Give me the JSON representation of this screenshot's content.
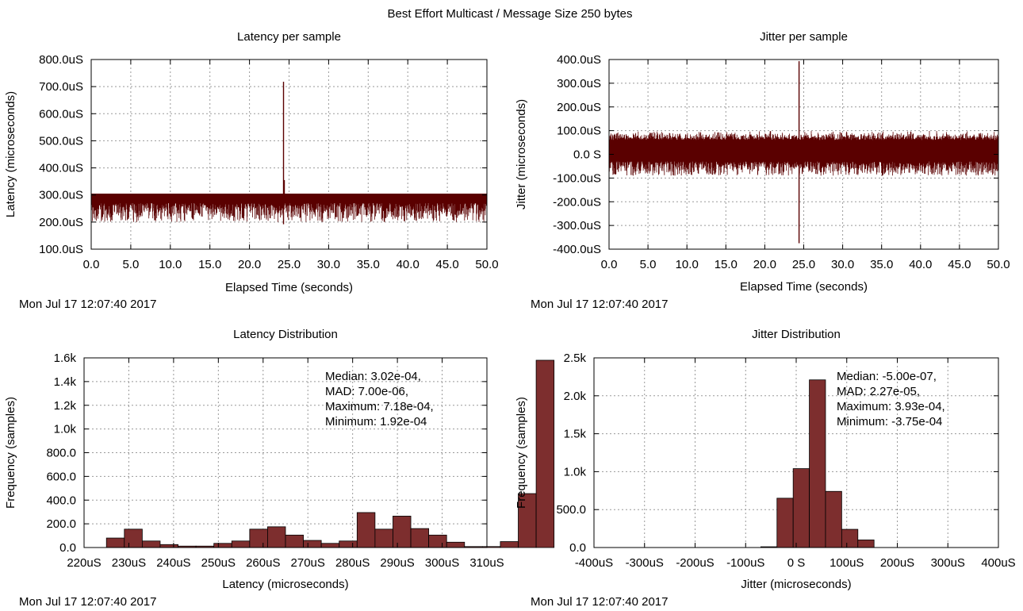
{
  "page_title": "Best Effort Multicast / Message Size 250 bytes",
  "colors": {
    "line": "#5a0000",
    "bar_fill": "#7d2e2e",
    "bar_stroke": "#000000",
    "grid": "#999999"
  },
  "chart_data": [
    {
      "id": "latency_sample",
      "type": "line",
      "title": "Latency per sample",
      "xlabel": "Elapsed Time (seconds)",
      "ylabel": "Latency (microseconds)",
      "timestamp": "Mon Jul 17 12:07:40 2017",
      "xlim": [
        0,
        50
      ],
      "ylim": [
        100,
        800
      ],
      "xticks": [
        0,
        5,
        10,
        15,
        20,
        25,
        30,
        35,
        40,
        45,
        50
      ],
      "xtick_labels": [
        "0.0",
        "5.0",
        "10.0",
        "15.0",
        "20.0",
        "25.0",
        "30.0",
        "35.0",
        "40.0",
        "45.0",
        "50.0"
      ],
      "yticks": [
        100,
        200,
        300,
        400,
        500,
        600,
        700,
        800
      ],
      "ytick_labels": [
        "100.0uS",
        "200.0uS",
        "300.0uS",
        "400.0uS",
        "500.0uS",
        "600.0uS",
        "700.0uS",
        "800.0uS"
      ],
      "grid": true,
      "band": {
        "low": 200,
        "high": 305,
        "dense_low": 270
      },
      "spikes": [
        {
          "x": 24.3,
          "y": 718
        },
        {
          "x": 24.4,
          "y": 355
        },
        {
          "x": 24.3,
          "y": 192
        }
      ]
    },
    {
      "id": "jitter_sample",
      "type": "line",
      "title": "Jitter per sample",
      "xlabel": "Elapsed Time (seconds)",
      "ylabel": "Jitter (microseconds)",
      "timestamp": "Mon Jul 17 12:07:40 2017",
      "xlim": [
        0,
        50
      ],
      "ylim": [
        -400,
        400
      ],
      "xticks": [
        0,
        5,
        10,
        15,
        20,
        25,
        30,
        35,
        40,
        45,
        50
      ],
      "xtick_labels": [
        "0.0",
        "5.0",
        "10.0",
        "15.0",
        "20.0",
        "25.0",
        "30.0",
        "35.0",
        "40.0",
        "45.0",
        "50.0"
      ],
      "yticks": [
        -400,
        -300,
        -200,
        -100,
        0,
        100,
        200,
        300,
        400
      ],
      "ytick_labels": [
        "-400.0uS",
        "-300.0uS",
        "-200.0uS",
        "-100.0uS",
        "0.0 S",
        "100.0uS",
        "200.0uS",
        "300.0uS",
        "400.0uS"
      ],
      "grid": true,
      "band": {
        "low": -90,
        "high": 100,
        "dense_low": -30,
        "dense_high": 60
      },
      "spikes": [
        {
          "x": 24.4,
          "y": 393
        },
        {
          "x": 24.4,
          "y": -375
        }
      ]
    },
    {
      "id": "latency_dist",
      "type": "bar",
      "title": "Latency Distribution",
      "xlabel": "Latency (microseconds)",
      "ylabel": "Frequency (samples)",
      "timestamp": "Mon Jul 17 12:07:40 2017",
      "xlim": [
        220,
        310
      ],
      "ylim": [
        0,
        1600
      ],
      "xticks": [
        220,
        230,
        240,
        250,
        260,
        270,
        280,
        290,
        300,
        310
      ],
      "xtick_labels": [
        "220uS",
        "230uS",
        "240uS",
        "250uS",
        "260uS",
        "270uS",
        "280uS",
        "290uS",
        "300uS",
        "310uS"
      ],
      "yticks": [
        0,
        200,
        400,
        600,
        800,
        1000,
        1200,
        1400,
        1600
      ],
      "ytick_labels": [
        "0.0",
        "200.0",
        "400.0",
        "600.0",
        "800.0",
        "1.0k",
        "1.2k",
        "1.4k",
        "1.6k"
      ],
      "grid": true,
      "bin_start": 221,
      "bin_width": 4.0,
      "values": [
        0,
        80,
        155,
        55,
        25,
        12,
        12,
        35,
        55,
        155,
        175,
        105,
        60,
        35,
        55,
        295,
        155,
        265,
        160,
        105,
        45,
        8,
        8,
        50,
        455,
        1580
      ],
      "annotation": [
        "Median: 3.02e-04,",
        "MAD: 7.00e-06,",
        "Maximum: 7.18e-04,",
        "Minimum: 1.92e-04"
      ]
    },
    {
      "id": "jitter_dist",
      "type": "bar",
      "title": "Jitter Distribution",
      "xlabel": "Jitter (microseconds)",
      "ylabel": "Frequency (samples)",
      "timestamp": "Mon Jul 17 12:07:40 2017",
      "xlim": [
        -400,
        400
      ],
      "ylim": [
        0,
        2500
      ],
      "xticks": [
        -400,
        -300,
        -200,
        -100,
        0,
        100,
        200,
        300,
        400
      ],
      "xtick_labels": [
        "-400uS",
        "-300uS",
        "-200uS",
        "-100uS",
        "0 S",
        "100uS",
        "200uS",
        "300uS",
        "400uS"
      ],
      "yticks": [
        0,
        500,
        1000,
        1500,
        2000,
        2500
      ],
      "ytick_labels": [
        "0.0",
        "500.0",
        "1.0k",
        "1.5k",
        "2.0k",
        "2.5k"
      ],
      "grid": true,
      "bin_start": -70,
      "bin_width": 32,
      "values": [
        10,
        650,
        1040,
        2210,
        740,
        240,
        100
      ],
      "annotation": [
        "Median: -5.00e-07,",
        "MAD: 2.27e-05,",
        "Maximum: 3.93e-04,",
        "Minimum: -3.75e-04"
      ]
    }
  ]
}
